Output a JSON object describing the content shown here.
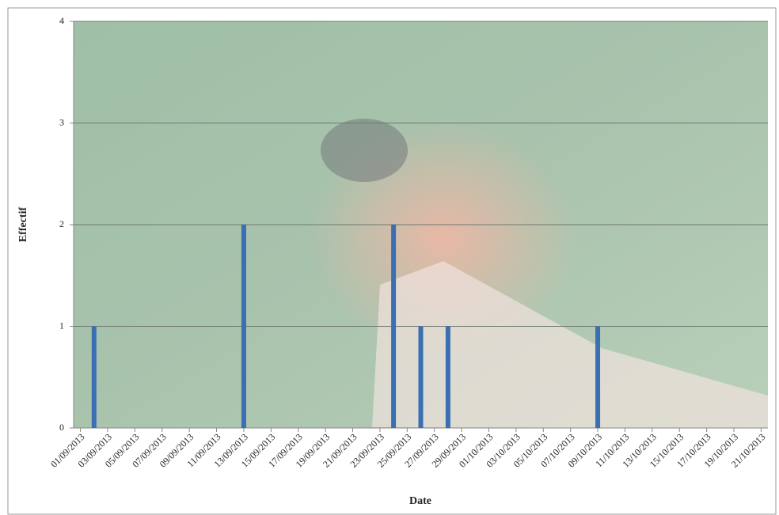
{
  "chart_data": {
    "type": "bar",
    "x_label": "Date",
    "y_label": "Effectif",
    "categories": [
      "01/09/2013",
      null,
      "03/09/2013",
      null,
      "05/09/2013",
      null,
      "07/09/2013",
      null,
      "09/09/2013",
      null,
      "11/09/2013",
      null,
      "13/09/2013",
      null,
      "15/09/2013",
      null,
      "17/09/2013",
      null,
      "19/09/2013",
      null,
      "21/09/2013",
      null,
      "23/09/2013",
      null,
      "25/09/2013",
      null,
      "27/09/2013",
      null,
      "29/09/2013",
      null,
      "01/10/2013",
      null,
      "03/10/2013",
      null,
      "05/10/2013",
      null,
      "07/10/2013",
      null,
      "09/10/2013",
      null,
      "11/10/2013",
      null,
      "13/10/2013",
      null,
      "15/10/2013",
      null,
      "17/10/2013",
      null,
      "19/10/2013",
      null,
      "21/10/2013"
    ],
    "values": [
      null,
      1,
      null,
      null,
      null,
      null,
      null,
      null,
      null,
      null,
      null,
      null,
      2,
      null,
      null,
      null,
      null,
      null,
      null,
      null,
      null,
      null,
      null,
      2,
      null,
      1,
      null,
      1,
      null,
      null,
      null,
      null,
      null,
      null,
      null,
      null,
      null,
      null,
      1,
      null,
      null,
      null,
      null,
      null,
      null,
      null,
      null,
      null,
      null,
      null,
      null
    ],
    "color": "#3a6fb4",
    "ylim": [
      0,
      4
    ],
    "yticks": [
      0,
      1,
      2,
      3,
      4
    ],
    "grid": true
  }
}
